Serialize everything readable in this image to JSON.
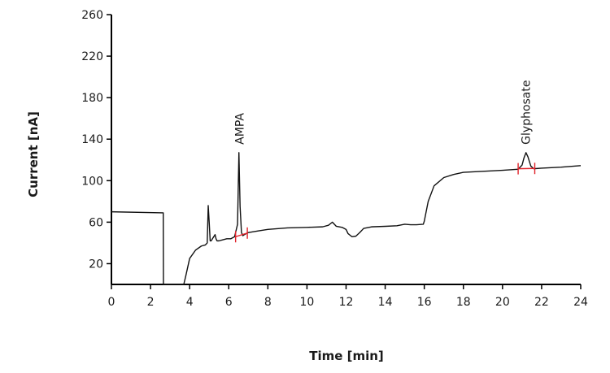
{
  "chart_data": {
    "type": "line",
    "xlabel": "Time [min]",
    "ylabel": "Current [nA]",
    "xlim": [
      0,
      24
    ],
    "ylim": [
      0,
      260
    ],
    "x_ticks": [
      0,
      2,
      4,
      6,
      8,
      10,
      12,
      14,
      16,
      18,
      20,
      22,
      24
    ],
    "y_ticks": [
      20,
      60,
      100,
      140,
      180,
      220,
      260
    ],
    "grid": false,
    "legend": "none",
    "colors": {
      "trace": "#111111",
      "integration_marks": "#e0222a"
    },
    "series": [
      {
        "x": [
          0,
          2.65,
          2.66,
          2.7,
          3.7,
          3.8,
          4.0,
          4.3,
          4.6,
          4.8,
          4.9,
          4.95,
          5.0,
          5.05,
          5.1,
          5.2,
          5.3,
          5.35,
          5.4,
          5.5,
          5.7,
          5.9,
          6.1,
          6.3,
          6.45,
          6.52,
          6.58,
          6.65,
          6.72,
          6.8,
          6.9,
          7.0,
          7.5,
          8.0,
          9.0,
          10.0,
          10.8,
          11.1,
          11.3,
          11.5,
          11.8,
          12.0,
          12.1,
          12.3,
          12.5,
          12.7,
          12.9,
          13.3,
          14.0,
          14.6,
          15.0,
          15.3,
          15.6,
          15.95,
          16.0,
          16.2,
          16.5,
          17.0,
          17.5,
          18.0,
          19.0,
          20.0,
          20.8,
          21.0,
          21.1,
          21.2,
          21.3,
          21.45,
          21.6,
          22.0,
          23.0,
          24.0
        ],
        "y": [
          70,
          69,
          0,
          0,
          0,
          8,
          25,
          33,
          37,
          38,
          40,
          76,
          60,
          42,
          42,
          45,
          48,
          44,
          42,
          42,
          43,
          44,
          44,
          46,
          58,
          127,
          75,
          50,
          47,
          48,
          49,
          50,
          51.5,
          53,
          54.5,
          55,
          55.5,
          57,
          60,
          56,
          55,
          53,
          49,
          46,
          46.5,
          50,
          54,
          55.5,
          56,
          56.5,
          58,
          57.5,
          57.5,
          58,
          61,
          80,
          95,
          103,
          106,
          108,
          109,
          110,
          111,
          115,
          122,
          127,
          123,
          114,
          111.5,
          112,
          113,
          114.5
        ]
      }
    ],
    "annotations": [
      {
        "text": "AMPA",
        "x": 6.55,
        "y": 127
      },
      {
        "text": "Glyphosate",
        "x": 21.2,
        "y": 127
      }
    ],
    "integration_marks": [
      {
        "x": [
          6.35,
          6.95
        ],
        "y": [
          46,
          49.5
        ]
      },
      {
        "x": [
          20.8,
          21.65
        ],
        "y": [
          111.5,
          111.8
        ]
      }
    ]
  }
}
